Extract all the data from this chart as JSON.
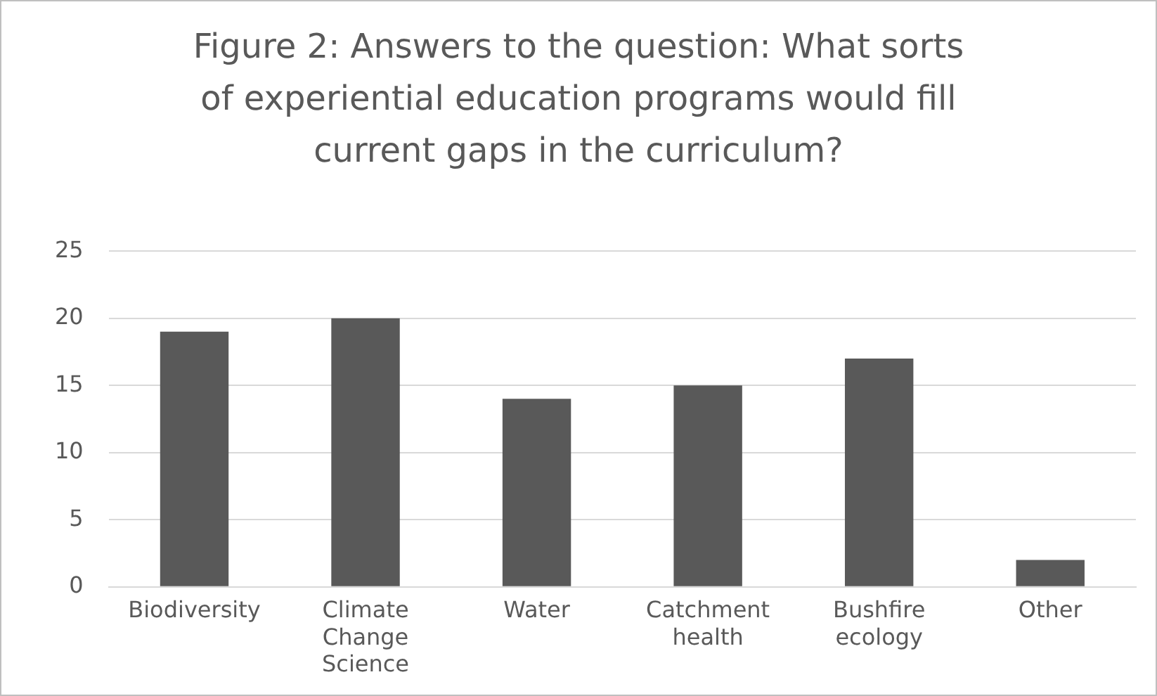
{
  "chart_data": {
    "type": "bar",
    "title": "Figure 2: Answers to the question: What sorts of experiential education programs would fill current gaps in the curriculum?",
    "categories": [
      "Biodiversity",
      "Climate Change Science",
      "Water",
      "Catchment health",
      "Bushfire ecology",
      "Other"
    ],
    "values": [
      19,
      20,
      14,
      15,
      17,
      2
    ],
    "color": "#595959",
    "ylim": [
      0,
      25
    ],
    "yticks": [
      0,
      5,
      10,
      15,
      20,
      25
    ],
    "grid": "y",
    "legend": false
  }
}
